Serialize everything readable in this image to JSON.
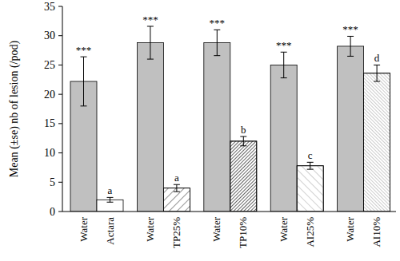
{
  "chart_data": {
    "type": "bar",
    "ylabel": "Mean (±se) nb of lesion (/pod)",
    "categories": [
      "Water",
      "Actara",
      "Water",
      "TP25%",
      "Water",
      "TP10%",
      "Water",
      "AI25%",
      "Water",
      "AI10%"
    ],
    "values": [
      22.2,
      2.0,
      28.8,
      4.0,
      28.8,
      12.0,
      25.0,
      7.8,
      28.2,
      23.6
    ],
    "errors": [
      4.2,
      0.4,
      2.8,
      0.6,
      2.2,
      0.8,
      2.2,
      0.6,
      1.7,
      1.4
    ],
    "annotations": [
      "***",
      "a",
      "***",
      "a",
      "***",
      "b",
      "***",
      "c",
      "***",
      "d"
    ],
    "colors": [
      "#c0c0c0",
      "#ffffff",
      "#c0c0c0",
      "#ffffff",
      "#c0c0c0",
      "#ffffff",
      "#c0c0c0",
      "#ffffff",
      "#c0c0c0",
      "#ffffff"
    ],
    "ylim": [
      0,
      35
    ],
    "yticks": [
      0,
      5,
      10,
      15,
      20,
      25,
      30,
      35
    ],
    "grid": false
  }
}
